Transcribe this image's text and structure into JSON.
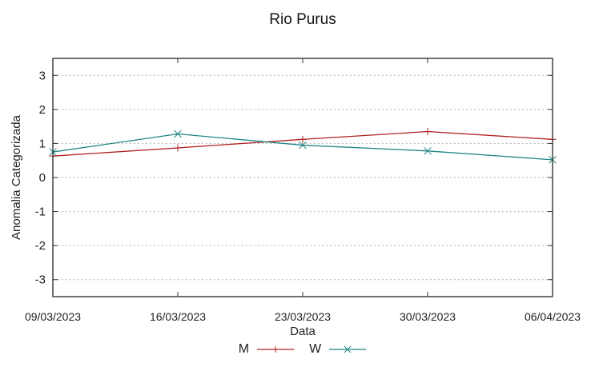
{
  "figure": {
    "background": "#ffffff"
  },
  "chart_data": {
    "type": "line",
    "title": "Rio Purus",
    "xlabel": "Data",
    "ylabel": "Anomalia Categorizada",
    "categories": [
      "09/03/2023",
      "16/03/2023",
      "23/03/2023",
      "30/03/2023",
      "06/04/2023"
    ],
    "series": [
      {
        "name": "M",
        "color": "#b02020",
        "marker": "plus",
        "values": [
          0.63,
          0.87,
          1.12,
          1.35,
          1.12
        ]
      },
      {
        "name": "W",
        "color": "#1f8585",
        "marker": "cross",
        "values": [
          0.75,
          1.28,
          0.95,
          0.78,
          0.52
        ]
      }
    ],
    "ylim": [
      -3.5,
      3.5
    ],
    "yticks": [
      -3,
      -2,
      -1,
      0,
      1,
      2,
      3
    ],
    "grid": true,
    "grid_style": "dotted",
    "legend_position": "bottom-center",
    "colors": {
      "grid": "#9a9a9a",
      "border": "#333333",
      "tick_text": "#1f1f1f"
    }
  }
}
